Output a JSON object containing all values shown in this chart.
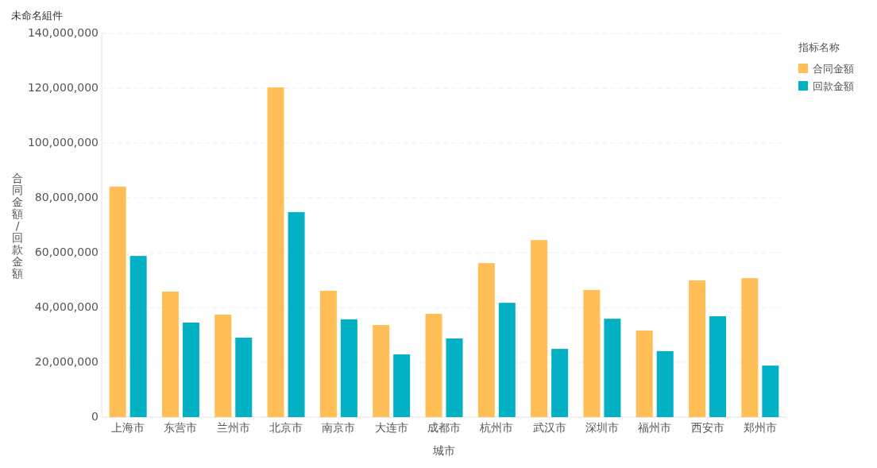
{
  "chart_data": {
    "type": "bar",
    "title": "未命名組件",
    "xlabel": "城市",
    "ylabel": "合同金額 / 回款金額",
    "legend_title": "指标名称",
    "legend": "top right",
    "grid": "y",
    "categories": [
      "上海市",
      "东营市",
      "兰州市",
      "北京市",
      "南京市",
      "大连市",
      "成都市",
      "杭州市",
      "武汉市",
      "深圳市",
      "福州市",
      "西安市",
      "郑州市"
    ],
    "series": [
      {
        "name": "合同金額",
        "color": "#ffbf56",
        "values": [
          84100000,
          45800000,
          37400000,
          120300000,
          46100000,
          33600000,
          37700000,
          56200000,
          64600000,
          46400000,
          31600000,
          49900000,
          50700000
        ]
      },
      {
        "name": "回款金額",
        "color": "#02b1c3",
        "values": [
          58800000,
          34500000,
          29000000,
          74800000,
          35700000,
          22900000,
          28700000,
          41700000,
          24900000,
          35900000,
          24100000,
          36800000,
          18800000
        ]
      }
    ],
    "ylim": [
      0,
      140000000
    ],
    "yticks": [
      0,
      {
        "value": 20000000,
        "label": "20,000,000"
      },
      {
        "value": 40000000,
        "label": "40,000,000"
      },
      {
        "value": 60000000,
        "label": "60,000,000"
      },
      {
        "value": 80000000,
        "label": "80,000,000"
      },
      {
        "value": 100000000,
        "label": "100,000,000"
      },
      {
        "value": 120000000,
        "label": "120,000,000"
      },
      {
        "value": 140000000,
        "label": "140,000,000"
      }
    ]
  }
}
